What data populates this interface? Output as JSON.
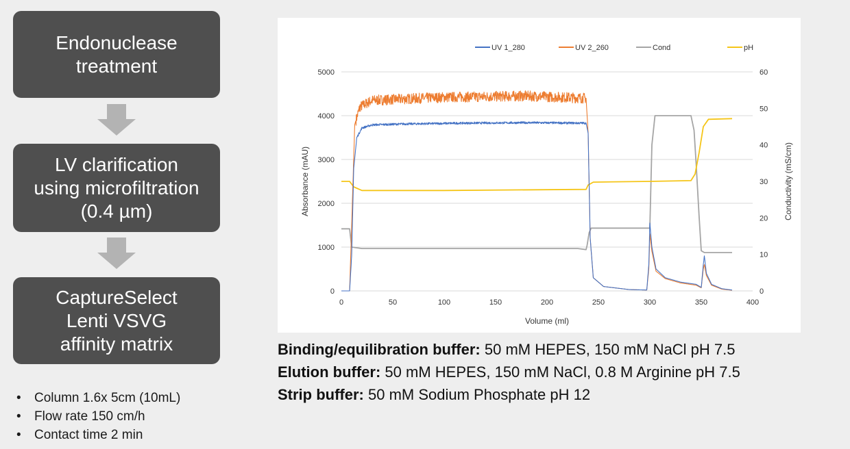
{
  "steps": [
    {
      "lines": [
        "Endonuclease",
        "treatment"
      ]
    },
    {
      "lines": [
        "LV clarification",
        "using microfiltration",
        "(0.4 µm)"
      ]
    },
    {
      "lines": [
        "CaptureSelect",
        "Lenti VSVG",
        "affinity matrix"
      ]
    }
  ],
  "bullets": [
    "Column 1.6x 5cm (10mL)",
    "Flow rate 150 cm/h",
    "Contact time 2 min"
  ],
  "bullet_symbol": "•",
  "buffers": [
    {
      "label": "Binding/equilibration buffer:",
      "text": " 50 mM HEPES, 150 mM NaCl pH 7.5"
    },
    {
      "label": "Elution buffer:",
      "text": " 50 mM HEPES, 150 mM NaCl, 0.8 M Arginine pH 7.5"
    },
    {
      "label": "Strip buffer:",
      "text": " 50 mM Sodium Phosphate pH 12"
    }
  ],
  "colors": {
    "box": "#4f4f4f",
    "arrow": "#b3b3b3"
  },
  "chart_data": {
    "type": "line",
    "xlabel": "Volume (ml)",
    "ylabel": "Absorbance (mAU)",
    "y2label": "Conductivity (mS/cm)",
    "xlim": [
      0,
      400
    ],
    "ylim": [
      0,
      5000
    ],
    "y2lim": [
      0,
      60
    ],
    "xticks": [
      "0",
      "50",
      "100",
      "150",
      "200",
      "250",
      "300",
      "350",
      "400"
    ],
    "yticks": [
      "0",
      "1000",
      "2000",
      "3000",
      "4000",
      "5000"
    ],
    "y2ticks": [
      "0",
      "10",
      "20",
      "30",
      "40",
      "50",
      "60"
    ],
    "grid": "horizontal",
    "legend_position": "top",
    "series": [
      {
        "name": "UV 1_280",
        "color": "#4472c4",
        "axis": "left",
        "noise": 25,
        "points": [
          [
            0,
            0
          ],
          [
            8,
            0
          ],
          [
            10,
            800
          ],
          [
            12,
            2800
          ],
          [
            15,
            3500
          ],
          [
            20,
            3720
          ],
          [
            30,
            3790
          ],
          [
            60,
            3810
          ],
          [
            120,
            3830
          ],
          [
            180,
            3840
          ],
          [
            238,
            3830
          ],
          [
            240,
            3600
          ],
          [
            242,
            1200
          ],
          [
            245,
            300
          ],
          [
            255,
            100
          ],
          [
            280,
            30
          ],
          [
            297,
            20
          ],
          [
            299,
            600
          ],
          [
            300,
            1550
          ],
          [
            302,
            1000
          ],
          [
            306,
            500
          ],
          [
            315,
            300
          ],
          [
            330,
            200
          ],
          [
            345,
            150
          ],
          [
            350,
            80
          ],
          [
            352,
            600
          ],
          [
            353,
            800
          ],
          [
            355,
            400
          ],
          [
            360,
            150
          ],
          [
            370,
            50
          ],
          [
            380,
            20
          ]
        ]
      },
      {
        "name": "UV 2_260",
        "color": "#ed7d31",
        "axis": "left",
        "noise": 120,
        "points": [
          [
            0,
            0
          ],
          [
            8,
            0
          ],
          [
            10,
            1500
          ],
          [
            13,
            3800
          ],
          [
            18,
            4200
          ],
          [
            30,
            4350
          ],
          [
            100,
            4420
          ],
          [
            180,
            4450
          ],
          [
            238,
            4400
          ],
          [
            240,
            3600
          ],
          [
            242,
            1200
          ],
          [
            245,
            300
          ],
          [
            255,
            100
          ],
          [
            280,
            30
          ],
          [
            297,
            20
          ],
          [
            299,
            500
          ],
          [
            300,
            1300
          ],
          [
            302,
            900
          ],
          [
            306,
            450
          ],
          [
            315,
            280
          ],
          [
            330,
            180
          ],
          [
            345,
            130
          ],
          [
            350,
            70
          ],
          [
            352,
            500
          ],
          [
            353,
            600
          ],
          [
            355,
            350
          ],
          [
            360,
            130
          ],
          [
            370,
            40
          ],
          [
            380,
            15
          ]
        ]
      },
      {
        "name": "Cond",
        "color": "#a5a5a5",
        "axis": "right",
        "noise": 0,
        "points": [
          [
            0,
            17
          ],
          [
            8,
            17
          ],
          [
            10,
            12
          ],
          [
            20,
            11.6
          ],
          [
            100,
            11.6
          ],
          [
            230,
            11.6
          ],
          [
            238,
            11.3
          ],
          [
            239,
            12.5
          ],
          [
            241,
            16
          ],
          [
            243,
            17.2
          ],
          [
            300,
            17.2
          ],
          [
            302,
            40
          ],
          [
            305,
            48
          ],
          [
            340,
            48
          ],
          [
            343,
            44
          ],
          [
            345,
            35
          ],
          [
            348,
            20
          ],
          [
            350,
            11
          ],
          [
            353,
            10.5
          ],
          [
            380,
            10.5
          ]
        ]
      },
      {
        "name": "pH",
        "color": "#f5c518",
        "axis": "right",
        "noise": 0,
        "points": [
          [
            0,
            30
          ],
          [
            8,
            30
          ],
          [
            12,
            28.5
          ],
          [
            20,
            27.5
          ],
          [
            100,
            27.5
          ],
          [
            238,
            27.8
          ],
          [
            240,
            29
          ],
          [
            245,
            29.8
          ],
          [
            300,
            30
          ],
          [
            340,
            30.2
          ],
          [
            344,
            32
          ],
          [
            348,
            38
          ],
          [
            352,
            45
          ],
          [
            357,
            47
          ],
          [
            380,
            47.2
          ]
        ]
      }
    ]
  }
}
